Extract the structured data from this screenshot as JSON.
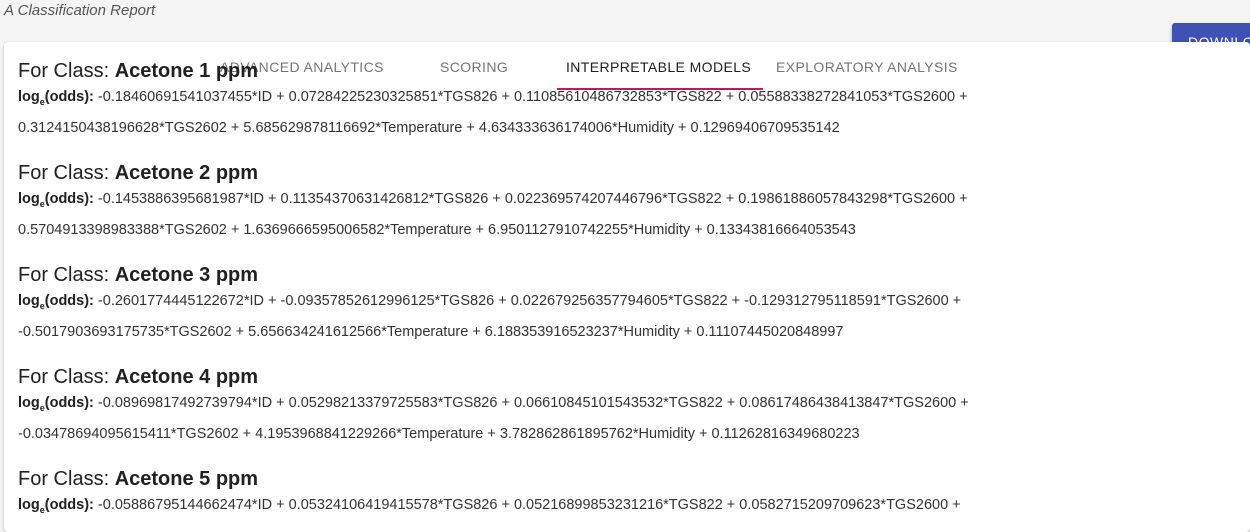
{
  "report_title": "A Classification Report",
  "download_label": "DOWNLOAD",
  "tabs": [
    {
      "label": "ADVANCED ANALYTICS"
    },
    {
      "label": "SCORING"
    },
    {
      "label": "INTERPRETABLE MODELS"
    },
    {
      "label": "EXPLORATORY ANALYSIS"
    }
  ],
  "active_tab": "INTERPRETABLE MODELS",
  "accent_color": "#c2185b",
  "button_color": "#3f51b5",
  "class_prefix": "For Class:",
  "log_label": "log",
  "log_sub": "e",
  "log_suffix": "(odds):",
  "classes": [
    {
      "name": "Acetone 1 ppm",
      "line1": "-0.18460691541037455*ID + 0.07284225230325851*TGS826 + 0.11085610486732853*TGS822 + 0.05588338272841053*TGS2600 +",
      "line2": "0.3124150438196628*TGS2602 + 5.685629878116692*Temperature + 4.634333636174006*Humidity + 0.12969406709535142"
    },
    {
      "name": "Acetone 2 ppm",
      "line1": "-0.1453886395681987*ID + 0.11354370631426812*TGS826 + 0.022369574207446796*TGS822 + 0.19861886057843298*TGS2600 +",
      "line2": "0.5704913398983388*TGS2602 + 1.6369666595006582*Temperature + 6.9501127910742255*Humidity + 0.13343816664053543"
    },
    {
      "name": "Acetone 3 ppm",
      "line1": "-0.2601774445122672*ID + -0.09357852612996125*TGS826 + 0.022679256357794605*TGS822 + -0.129312795118591*TGS2600 +",
      "line2": "-0.5017903693175735*TGS2602 + 5.656634241612566*Temperature + 6.188353916523237*Humidity + 0.11107445020848997"
    },
    {
      "name": "Acetone 4 ppm",
      "line1": "-0.08969817492739794*ID + 0.05298213379725583*TGS826 + 0.06610845101543532*TGS822 + 0.08617486438413847*TGS2600 +",
      "line2": "-0.03478694095615411*TGS2602 + 4.1953968841229266*Temperature + 3.782862861895762*Humidity + 0.11262816349680223"
    },
    {
      "name": "Acetone 5 ppm",
      "line1": "-0.05886795144662474*ID + 0.05324106419415578*TGS826 + 0.05216899853231216*TGS822 + 0.0582715209709623*TGS2600 +",
      "line2": ""
    }
  ]
}
